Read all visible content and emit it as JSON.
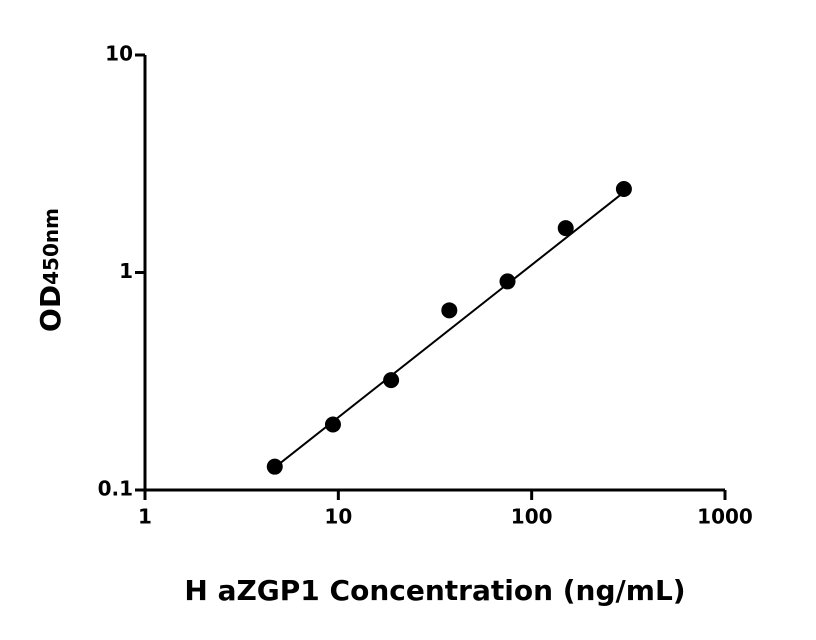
{
  "chart_data": {
    "type": "scatter",
    "x_label": "H aZGP1 Concentration (ng/mL)",
    "y_label": "OD",
    "y_label_sub": "450nm",
    "x": [
      4.69,
      9.38,
      18.75,
      37.5,
      75,
      150,
      300
    ],
    "values": [
      0.128,
      0.2,
      0.32,
      0.67,
      0.91,
      1.6,
      2.42
    ],
    "color": "#000000",
    "fit": {
      "x": [
        4.69,
        300
      ],
      "values": [
        0.127,
        2.34
      ]
    },
    "xlog": true,
    "ylog": true,
    "xlim": [
      1,
      1000
    ],
    "ylim": [
      0.1,
      10
    ],
    "xticks": [
      1,
      10,
      100,
      1000
    ],
    "yticks": [
      0.1,
      1,
      10
    ]
  }
}
